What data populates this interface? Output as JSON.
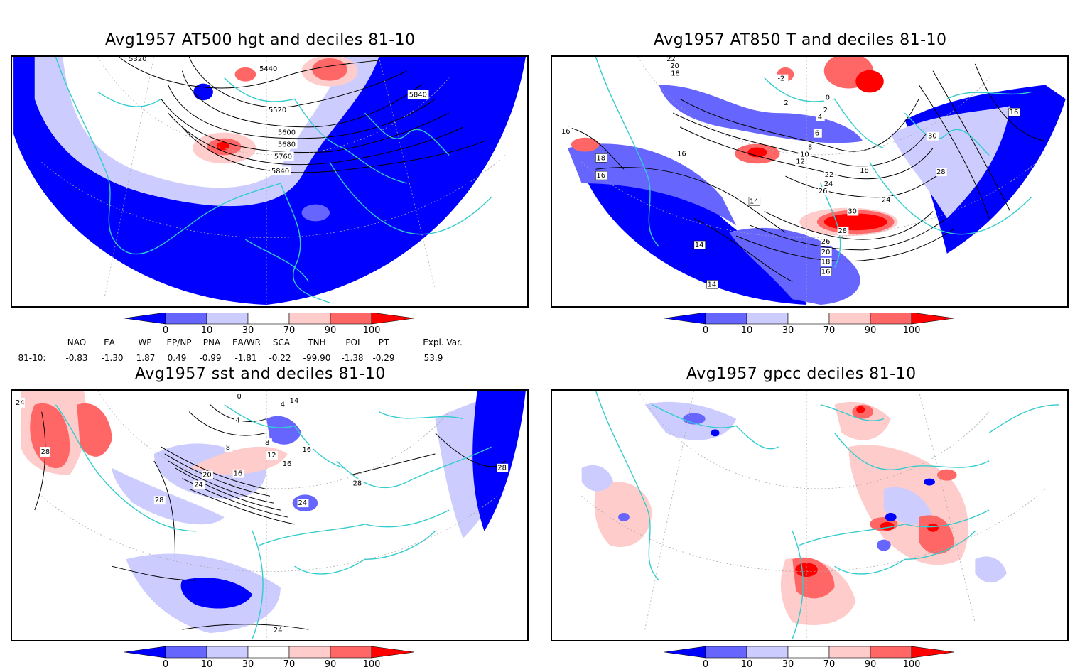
{
  "panels": [
    {
      "title": "Avg1957 AT500 hgt and deciles 81-10",
      "contour_labels": [
        "5320",
        "5440",
        "5520",
        "5600",
        "5680",
        "5760",
        "5840",
        "5840"
      ]
    },
    {
      "title": "Avg1957 AT850 T and deciles 81-10",
      "contour_labels": [
        "22",
        "20",
        "18",
        "-2",
        "0",
        "2",
        "2",
        "4",
        "6",
        "8",
        "10",
        "12",
        "14",
        "14",
        "14",
        "16",
        "16",
        "16",
        "16",
        "16",
        "18",
        "18",
        "18",
        "20",
        "22",
        "24",
        "24",
        "26",
        "26",
        "28",
        "28",
        "30",
        "30"
      ]
    },
    {
      "title": "Avg1957 sst and deciles 81-10",
      "contour_labels": [
        "24",
        "28",
        "0",
        "4",
        "4",
        "8",
        "8",
        "12",
        "14",
        "16",
        "16",
        "16",
        "20",
        "24",
        "24",
        "24",
        "28",
        "28",
        "28"
      ]
    },
    {
      "title": "Avg1957 gpcc deciles 81-10",
      "contour_labels": []
    }
  ],
  "colorbar": {
    "tick_labels": [
      "0",
      "10",
      "30",
      "70",
      "90",
      "100"
    ],
    "colors": [
      "#0000ff",
      "#6666ff",
      "#ccccff",
      "#ffffff",
      "#ffcccc",
      "#ff6666",
      "#ff0000"
    ]
  },
  "indices": {
    "headers": [
      "NAO",
      "EA",
      "WP",
      "EP/NP",
      "PNA",
      "EA/WR",
      "SCA",
      "TNH",
      "POL",
      "PT",
      "Expl. Var."
    ],
    "row_label": "81-10:",
    "values": [
      "-0.83",
      "-1.30",
      "1.87",
      "0.49",
      "-0.99",
      "-1.81",
      "-0.22",
      "-99.90",
      "-1.38",
      "-0.29",
      "53.9"
    ]
  },
  "colors": {
    "coast": "#33cccc",
    "strong_blue": "#0000ff",
    "mid_blue": "#6666ff",
    "light_blue": "#ccccff",
    "light_red": "#ffcccc",
    "mid_red": "#ff6666",
    "strong_red": "#ff0000"
  }
}
